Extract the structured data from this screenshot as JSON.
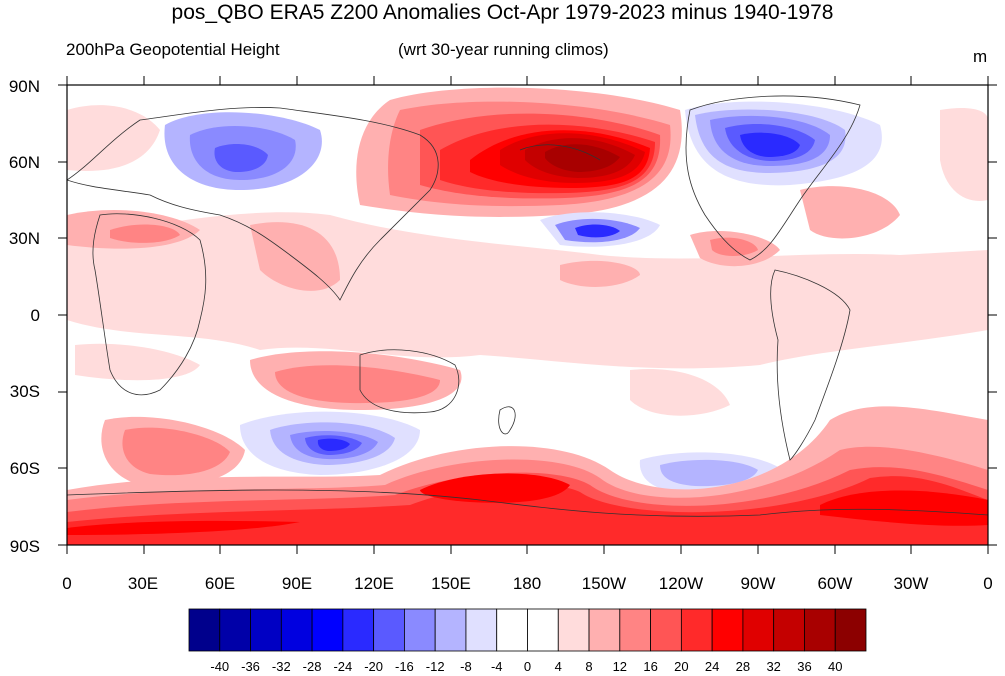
{
  "title": "pos_QBO ERA5 Z200 Anomalies Oct-Apr 1979-2023 minus 1940-1978",
  "subtitle_left": "200hPa Geopotential Height",
  "subtitle_center": "(wrt 30-year running climos)",
  "units": "m",
  "y_ticks": [
    "90N",
    "60N",
    "30N",
    "0",
    "30S",
    "60S",
    "90S"
  ],
  "x_ticks": [
    "0",
    "30E",
    "60E",
    "90E",
    "120E",
    "150E",
    "180",
    "150W",
    "120W",
    "90W",
    "60W",
    "30W",
    "0"
  ],
  "colorbar": {
    "labels": [
      "-40",
      "-36",
      "-32",
      "-28",
      "-24",
      "-20",
      "-16",
      "-12",
      "-8",
      "-4",
      "0",
      "4",
      "8",
      "12",
      "16",
      "20",
      "24",
      "28",
      "32",
      "36",
      "40"
    ],
    "colors": [
      "#00008c",
      "#0000a8",
      "#0000c4",
      "#0000e0",
      "#0000ff",
      "#2a2aff",
      "#5a5aff",
      "#8a8aff",
      "#b4b4ff",
      "#e0e0ff",
      "#ffffff",
      "#ffffff",
      "#ffdcdc",
      "#ffb0b0",
      "#ff8484",
      "#ff5555",
      "#ff2a2a",
      "#ff0000",
      "#e00000",
      "#c40000",
      "#a80000",
      "#8c0000"
    ]
  },
  "map": {
    "lon_range": [
      0,
      360
    ],
    "lat_range": [
      -90,
      90
    ],
    "features": [
      {
        "name": "alaska-pacific-high",
        "lon": 175,
        "lat": 58,
        "value": 40
      },
      {
        "name": "nw-pacific-positive",
        "lon": 150,
        "lat": 45,
        "value": 24
      },
      {
        "name": "canada-low",
        "lon": 275,
        "lat": 65,
        "value": -28
      },
      {
        "name": "siberia-low",
        "lon": 65,
        "lat": 62,
        "value": -20
      },
      {
        "name": "north-pacific-low",
        "lon": 210,
        "lat": 33,
        "value": -24
      },
      {
        "name": "south-indian-low",
        "lon": 105,
        "lat": -50,
        "value": -24
      },
      {
        "name": "south-pacific-low",
        "lon": 250,
        "lat": -62,
        "value": -16
      },
      {
        "name": "south-pacific-high",
        "lon": 165,
        "lat": -65,
        "value": 28
      },
      {
        "name": "antarctic-peninsula-high",
        "lon": 315,
        "lat": -72,
        "value": 28
      },
      {
        "name": "southern-ocean-band",
        "lon": 60,
        "lat": -78,
        "value": 24
      },
      {
        "name": "australia-high",
        "lon": 100,
        "lat": -25,
        "value": 16
      },
      {
        "name": "south-atlantic-high",
        "lon": 40,
        "lat": -50,
        "value": 16
      }
    ]
  }
}
